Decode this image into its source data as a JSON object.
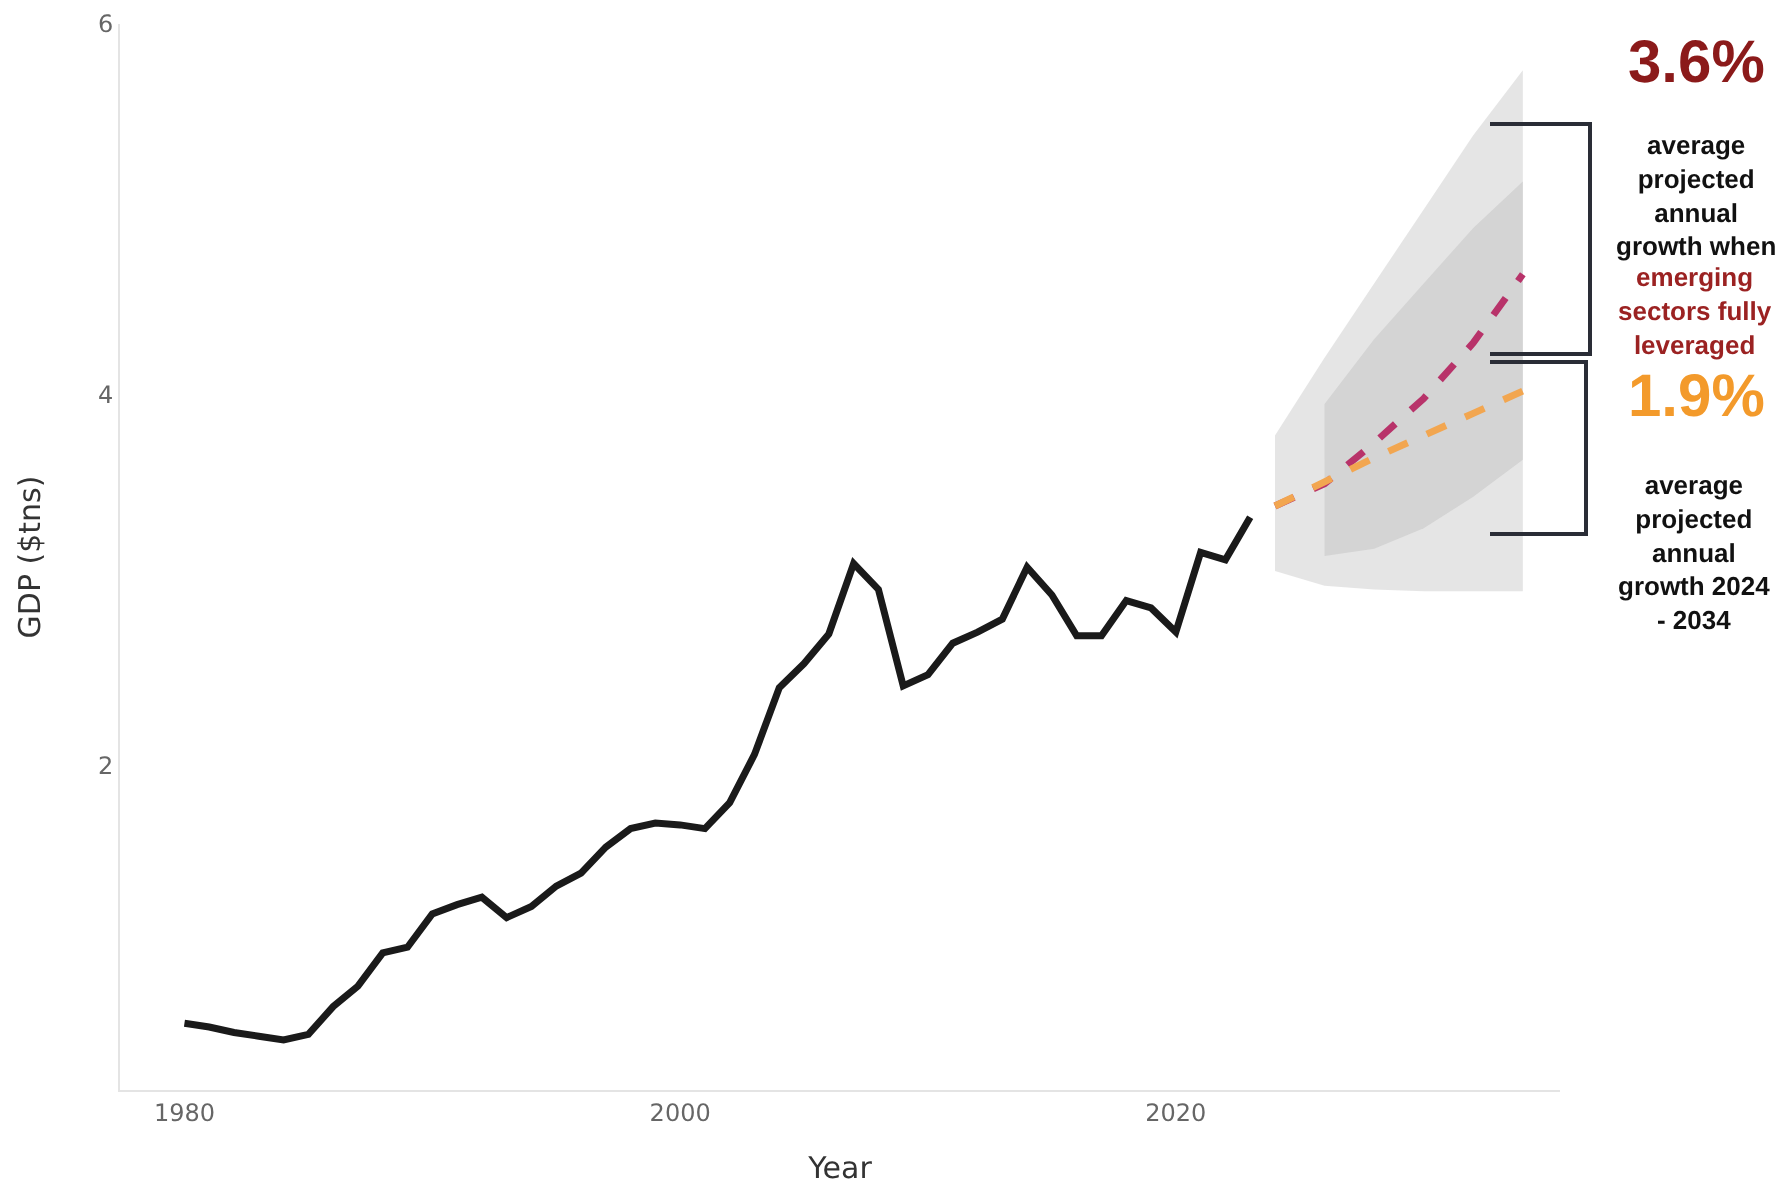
{
  "chart_data": {
    "type": "line",
    "xlabel": "Year",
    "ylabel": "GDP ($tns)",
    "xlim": [
      1977.4,
      2035.5
    ],
    "xticks": [
      1980,
      2000,
      2020
    ],
    "ylim": [
      0.25,
      6
    ],
    "yticks": [
      2,
      4,
      6
    ],
    "grid": false,
    "annotations": [
      "3.6%",
      "average\nprojected\nannual\ngrowth when",
      "emerging\nsectors fully\nleveraged",
      "1.9%",
      "average\nprojected\nannual\ngrowth 2024\n- 2034"
    ],
    "series": [
      {
        "type": "line",
        "color": "#1a1a1a",
        "line_style": "solid",
        "x": [
          1980,
          1981,
          1982,
          1983,
          1984,
          1985,
          1986,
          1987,
          1988,
          1989,
          1990,
          1991,
          1992,
          1993,
          1994,
          1995,
          1996,
          1997,
          1998,
          1999,
          2000,
          2001,
          2002,
          2003,
          2004,
          2005,
          2006,
          2007,
          2008,
          2009,
          2010,
          2011,
          2012,
          2013,
          2014,
          2015,
          2016,
          2017,
          2018,
          2019,
          2020,
          2021,
          2022,
          2023
        ],
        "values": [
          0.61,
          0.59,
          0.56,
          0.54,
          0.52,
          0.55,
          0.7,
          0.81,
          0.99,
          1.02,
          1.2,
          1.25,
          1.29,
          1.18,
          1.24,
          1.35,
          1.42,
          1.56,
          1.66,
          1.69,
          1.68,
          1.66,
          1.8,
          2.06,
          2.42,
          2.55,
          2.71,
          3.09,
          2.95,
          2.43,
          2.49,
          2.66,
          2.72,
          2.79,
          3.07,
          2.92,
          2.7,
          2.7,
          2.89,
          2.85,
          2.72,
          3.15,
          3.11,
          3.34
        ]
      },
      {
        "type": "line",
        "color": "#b8336a",
        "line_style": "dashed",
        "x": [
          2024,
          2026,
          2028,
          2030,
          2032,
          2034
        ],
        "values": [
          3.4,
          3.52,
          3.74,
          3.98,
          4.28,
          4.65
        ],
        "lower": [
          3.05,
          2.97,
          2.95,
          2.94,
          2.94,
          2.94
        ],
        "upper": [
          3.78,
          4.2,
          4.6,
          5.0,
          5.4,
          5.75
        ]
      },
      {
        "type": "line",
        "color": "#f2a650",
        "line_style": "dashed",
        "x": [
          2024,
          2026,
          2028,
          2030,
          2032,
          2034
        ],
        "values": [
          3.4,
          3.53,
          3.66,
          3.78,
          3.9,
          4.02
        ],
        "lower": [
          null,
          3.13,
          3.17,
          3.28,
          3.45,
          3.65
        ],
        "upper": [
          null,
          3.95,
          4.3,
          4.6,
          4.9,
          5.15
        ]
      }
    ]
  }
}
